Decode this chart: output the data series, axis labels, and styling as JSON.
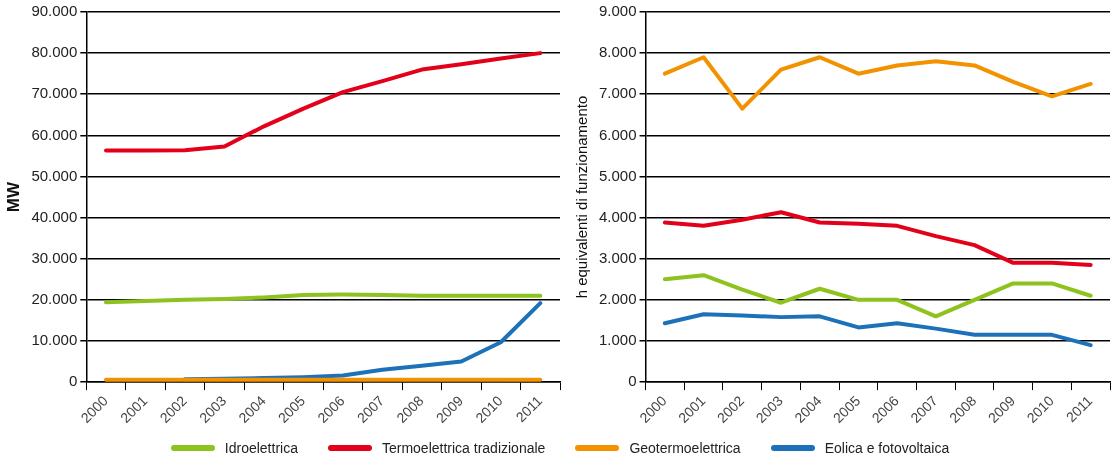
{
  "chart_data": [
    {
      "type": "line",
      "ylabel": "MW",
      "categories": [
        "2000",
        "2001",
        "2002",
        "2003",
        "2004",
        "2005",
        "2006",
        "2007",
        "2008",
        "2009",
        "2010",
        "2011"
      ],
      "series": [
        {
          "name": "Idroelettrica",
          "color": "#8dc21f",
          "values": [
            19400,
            19700,
            20000,
            20200,
            20600,
            21200,
            21300,
            21200,
            21000,
            21000,
            21000,
            21000
          ]
        },
        {
          "name": "Termoelettrica tradizionale",
          "color": "#e2001a",
          "values": [
            56300,
            56300,
            56400,
            57300,
            62200,
            66500,
            70500,
            73200,
            76000,
            77300,
            78700,
            80000
          ]
        },
        {
          "name": "Geotermoelettrica",
          "color": "#f39200",
          "values": [
            600,
            600,
            600,
            600,
            600,
            600,
            600,
            600,
            600,
            600,
            600,
            600
          ]
        },
        {
          "name": "Eolica e fotovoltaica",
          "color": "#1d71b8",
          "values": [
            null,
            null,
            700,
            800,
            1000,
            1200,
            1600,
            3000,
            4000,
            5000,
            9700,
            19200
          ]
        }
      ],
      "ylim": [
        0,
        90000
      ],
      "yticks": [
        {
          "value": 0,
          "label": "0"
        },
        {
          "value": 10000,
          "label": "10.000"
        },
        {
          "value": 20000,
          "label": "20.000"
        },
        {
          "value": 30000,
          "label": "30.000"
        },
        {
          "value": 40000,
          "label": "40.000"
        },
        {
          "value": 50000,
          "label": "50.000"
        },
        {
          "value": 60000,
          "label": "60.000"
        },
        {
          "value": 70000,
          "label": "70.000"
        },
        {
          "value": 80000,
          "label": "80.000"
        },
        {
          "value": 90000,
          "label": "90.000"
        }
      ],
      "grid": "y",
      "legend": "bottom",
      "marker": "none"
    },
    {
      "type": "line",
      "ylabel": "h equivalenti di funzionamento",
      "categories": [
        "2000",
        "2001",
        "2002",
        "2003",
        "2004",
        "2005",
        "2006",
        "2007",
        "2008",
        "2009",
        "2010",
        "2011"
      ],
      "series": [
        {
          "color": "#8dc21f",
          "values": [
            2500,
            2600,
            2250,
            1930,
            2270,
            2000,
            2000,
            1600,
            2000,
            2400,
            2400,
            2100
          ]
        },
        {
          "color": "#e2001a",
          "values": [
            3880,
            3800,
            3950,
            4130,
            3880,
            3850,
            3800,
            3550,
            3330,
            2900,
            2900,
            2850
          ]
        },
        {
          "color": "#f39200",
          "values": [
            7500,
            7900,
            6650,
            7600,
            7900,
            7500,
            7700,
            7800,
            7700,
            7300,
            6950,
            7250
          ]
        },
        {
          "color": "#1d71b8",
          "values": [
            1430,
            1650,
            1620,
            1580,
            1600,
            1330,
            1430,
            1300,
            1150,
            1150,
            1150,
            900
          ]
        }
      ],
      "ylim": [
        0,
        9000
      ],
      "yticks": [
        {
          "value": 0,
          "label": "0"
        },
        {
          "value": 1000,
          "label": "1.000"
        },
        {
          "value": 2000,
          "label": "2.000"
        },
        {
          "value": 3000,
          "label": "3.000"
        },
        {
          "value": 4000,
          "label": "4.000"
        },
        {
          "value": 5000,
          "label": "5.000"
        },
        {
          "value": 6000,
          "label": "6.000"
        },
        {
          "value": 7000,
          "label": "7.000"
        },
        {
          "value": 8000,
          "label": "8.000"
        },
        {
          "value": 9000,
          "label": "9.000"
        }
      ],
      "grid": "y",
      "marker": "none"
    }
  ]
}
